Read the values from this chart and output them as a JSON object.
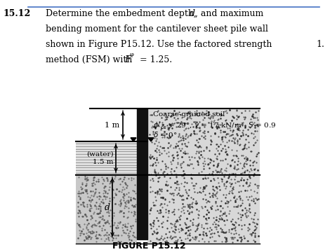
{
  "title_number": "15.12",
  "figure_label": "FIGURE P15.12",
  "soil_label": "Coarse-grained soil",
  "dim_1m": "1 m",
  "dim_water": "(water)",
  "dim_1p5m": "1.5 m",
  "dim_d": "d",
  "side_number": "1.",
  "bg_color": "#ffffff",
  "wall_color": "#111111",
  "line_color": "#000000",
  "text_color": "#000000",
  "blue_line_color": "#4472C4",
  "dot_color_light": "#666666",
  "dot_color_dark": "#333333",
  "water_hatch_color": "#999999",
  "embed_left_dot_color": "#555555"
}
